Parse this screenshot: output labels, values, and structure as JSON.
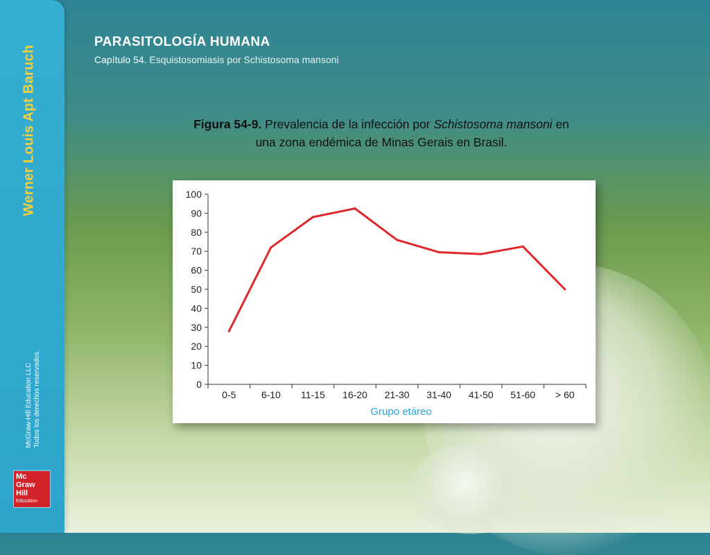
{
  "sidebar": {
    "author": "Werner Louis Apt Baruch",
    "copyright_line1": "McGraw-Hill Education LLC",
    "copyright_line2": "Todos los derechos reservados.",
    "logo": {
      "line1": "Mc",
      "line2": "Graw",
      "line3": "Hill",
      "line4": "Education",
      "color": "#d2232a"
    }
  },
  "header": {
    "title": "PARASITOLOGÍA HUMANA",
    "chapter": "Capítulo 54.",
    "subtitle": " Esquistosomiasis por Schistosoma mansoni"
  },
  "caption": {
    "label": "Figura 54-9.",
    "text_before": " Prevalencia de la infección por ",
    "species": "Schistosoma mansoni",
    "text_after": " en una zona endémica de Minas Gerais en Brasil."
  },
  "chart_data": {
    "type": "line",
    "categories": [
      "0-5",
      "6-10",
      "11-15",
      "16-20",
      "21-30",
      "31-40",
      "41-50",
      "51-60",
      "> 60"
    ],
    "series": [
      {
        "values": [
          28,
          72,
          88,
          92.5,
          76,
          69.5,
          68.5,
          72.5,
          50
        ],
        "color": "#e0262a"
      }
    ],
    "xlabel": "Grupo etáreo",
    "ylabel": "",
    "ylim": [
      0,
      100
    ],
    "yticks": [
      "0",
      "10",
      "20",
      "30",
      "40",
      "50",
      "60",
      "70",
      "80",
      "90",
      "100"
    ],
    "grid": false,
    "legend": "none"
  }
}
